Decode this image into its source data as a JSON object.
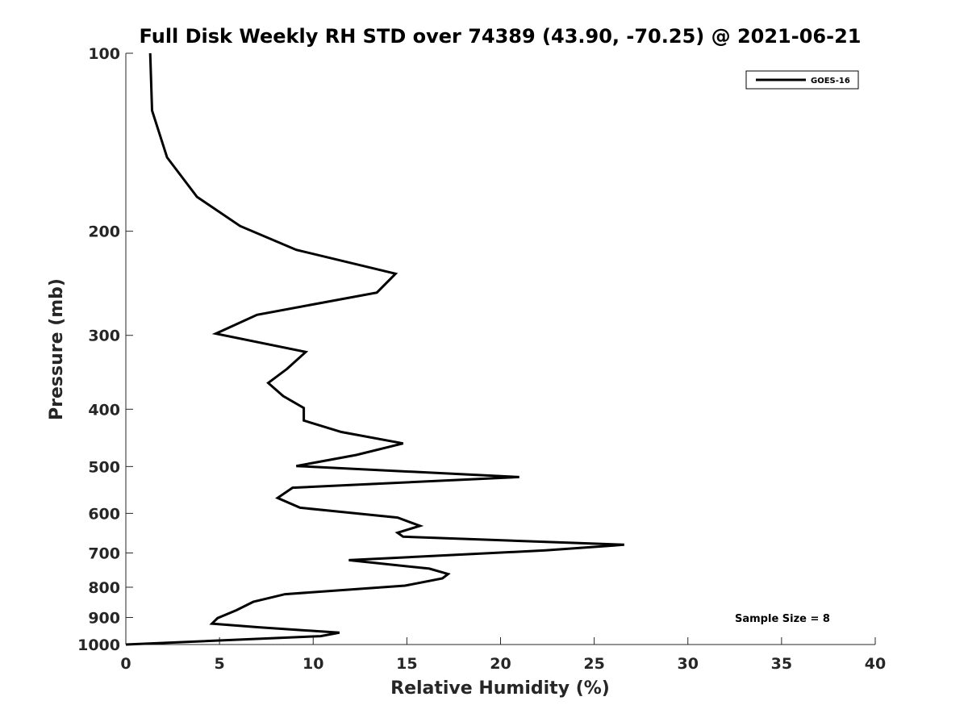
{
  "chart_data": {
    "type": "line",
    "title": "Full Disk Weekly RH STD over 74389 (43.90, -70.25) @ 2021-06-21",
    "xlabel": "Relative Humidity (%)",
    "ylabel": "Pressure (mb)",
    "xlim": [
      0,
      40
    ],
    "ylim": [
      100,
      1000
    ],
    "y_scale": "log",
    "y_reversed": true,
    "grid": false,
    "legend_position": "top-right",
    "xticks": [
      0,
      5,
      10,
      15,
      20,
      25,
      30,
      35,
      40
    ],
    "yticks": [
      100,
      200,
      300,
      400,
      500,
      600,
      700,
      800,
      900,
      1000
    ],
    "annotation": "Sample Size = 8",
    "series": [
      {
        "name": "GOES-16",
        "color": "#000000",
        "points": [
          [
            1.3,
            100
          ],
          [
            1.4,
            125
          ],
          [
            2.2,
            150
          ],
          [
            3.8,
            175
          ],
          [
            6.1,
            196
          ],
          [
            9.1,
            215
          ],
          [
            14.4,
            236
          ],
          [
            13.4,
            254
          ],
          [
            7.0,
            277
          ],
          [
            4.8,
            298
          ],
          [
            9.6,
            320
          ],
          [
            8.6,
            342
          ],
          [
            7.6,
            361
          ],
          [
            8.4,
            380
          ],
          [
            9.5,
            398
          ],
          [
            9.5,
            418
          ],
          [
            11.5,
            437
          ],
          [
            14.8,
            457
          ],
          [
            12.3,
            478
          ],
          [
            9.1,
            499
          ],
          [
            21.0,
            521
          ],
          [
            8.9,
            543
          ],
          [
            8.1,
            565
          ],
          [
            9.3,
            587
          ],
          [
            14.5,
            610
          ],
          [
            15.7,
            630
          ],
          [
            14.5,
            647
          ],
          [
            14.8,
            657
          ],
          [
            26.6,
            678
          ],
          [
            22.4,
            693
          ],
          [
            11.9,
            720
          ],
          [
            16.2,
            744
          ],
          [
            17.2,
            760
          ],
          [
            16.9,
            773
          ],
          [
            14.9,
            795
          ],
          [
            8.5,
            822
          ],
          [
            6.8,
            847
          ],
          [
            5.9,
            875
          ],
          [
            4.9,
            902
          ],
          [
            4.6,
            922
          ],
          [
            7.1,
            935
          ],
          [
            11.4,
            955
          ],
          [
            10.4,
            968
          ],
          [
            0.0,
            1000
          ]
        ]
      }
    ]
  }
}
